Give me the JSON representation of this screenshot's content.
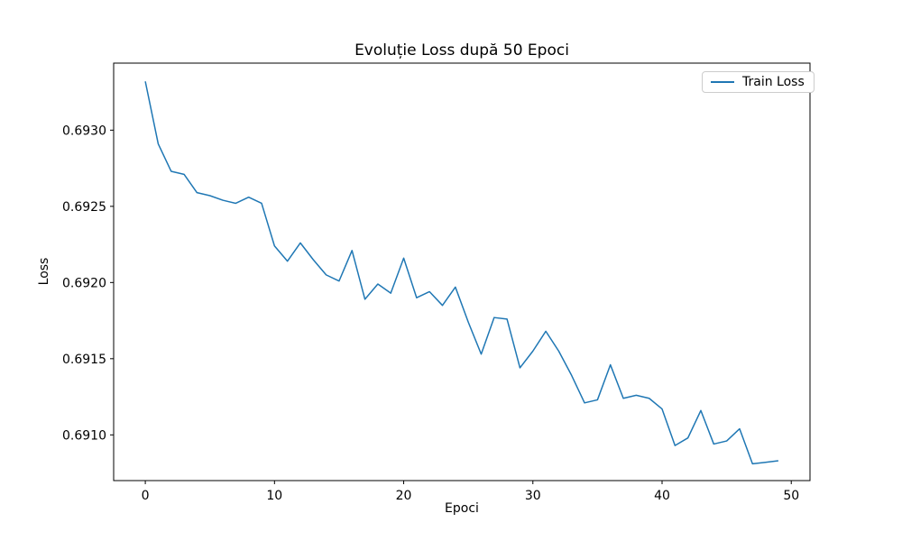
{
  "chart_data": {
    "type": "line",
    "title": "Evoluție Loss după 50 Epoci",
    "xlabel": "Epoci",
    "ylabel": "Loss",
    "grid": false,
    "legend_position": "upper right",
    "x": [
      0,
      1,
      2,
      3,
      4,
      5,
      6,
      7,
      8,
      9,
      10,
      11,
      12,
      13,
      14,
      15,
      16,
      17,
      18,
      19,
      20,
      21,
      22,
      23,
      24,
      25,
      26,
      27,
      28,
      29,
      30,
      31,
      32,
      33,
      34,
      35,
      36,
      37,
      38,
      39,
      40,
      41,
      42,
      43,
      44,
      45,
      46,
      47,
      48,
      49
    ],
    "series": [
      {
        "name": "Train Loss",
        "color": "#1f77b4",
        "values": [
          0.69332,
          0.69291,
          0.69273,
          0.69271,
          0.69259,
          0.69257,
          0.69254,
          0.69252,
          0.69256,
          0.69252,
          0.69224,
          0.69214,
          0.69226,
          0.69215,
          0.69205,
          0.69201,
          0.69221,
          0.69189,
          0.69199,
          0.69193,
          0.69216,
          0.6919,
          0.69194,
          0.69185,
          0.69197,
          0.69174,
          0.69153,
          0.69177,
          0.69176,
          0.69144,
          0.69155,
          0.69168,
          0.69155,
          0.69139,
          0.69121,
          0.69123,
          0.69146,
          0.69124,
          0.69126,
          0.69124,
          0.69117,
          0.69093,
          0.69098,
          0.69116,
          0.69094,
          0.69096,
          0.69104,
          0.69081,
          0.69082,
          0.69083
        ]
      }
    ],
    "xlim": [
      -2.45,
      51.45
    ],
    "ylim": [
      0.6907,
      0.69344
    ],
    "xticks": [
      0,
      10,
      20,
      30,
      40,
      50
    ],
    "yticks": [
      0.691,
      0.6915,
      0.692,
      0.6925,
      0.693
    ],
    "ytick_decimals": 4
  },
  "colors": {
    "background": "#ffffff",
    "spine": "#000000",
    "tick": "#000000",
    "legend_border": "#cccccc"
  }
}
